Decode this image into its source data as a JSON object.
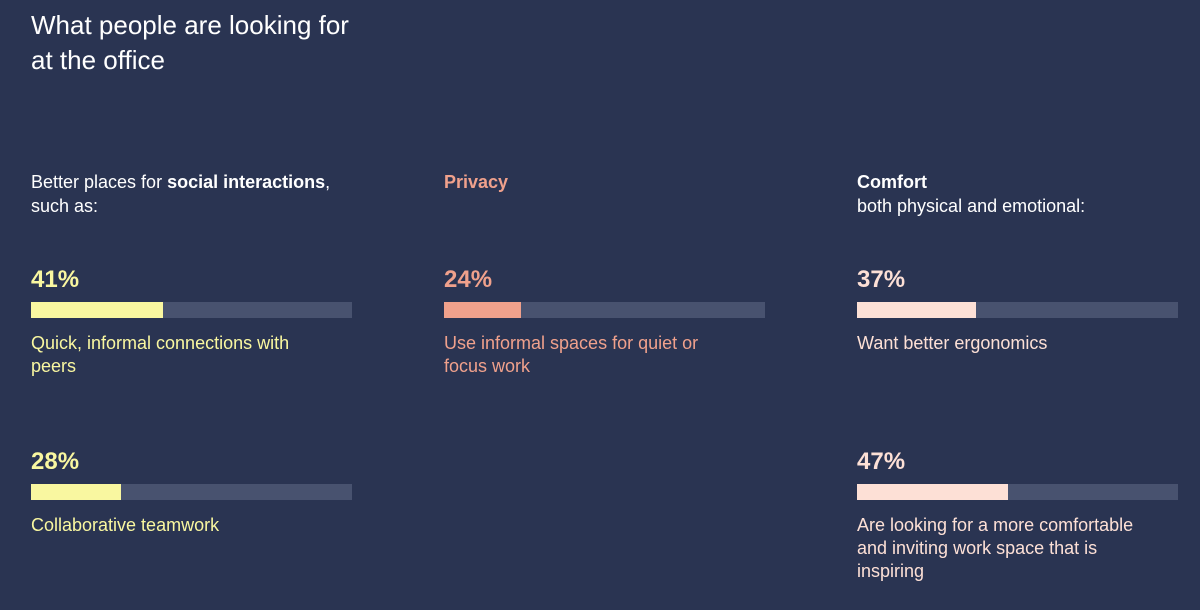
{
  "title_line1": "What people are looking for",
  "title_line2": "at the office",
  "colors": {
    "background": "#2a3452",
    "track": "#48526f",
    "social": "#f9f7a0",
    "privacy": "#f0a18c",
    "comfort": "#fde0d6"
  },
  "chart_data": {
    "type": "bar",
    "title": "What people are looking for at the office",
    "groups": [
      {
        "heading_pre": "Better places for ",
        "heading_bold": "social interactions",
        "heading_post": ", such as:",
        "color": "#f9f7a0",
        "items": [
          {
            "value": 41,
            "value_label": "41%",
            "label": "Quick, informal connections with peers"
          },
          {
            "value": 28,
            "value_label": "28%",
            "label": "Collaborative teamwork"
          }
        ]
      },
      {
        "heading_pre": "",
        "heading_bold": "Privacy",
        "heading_post": "",
        "color": "#f0a18c",
        "items": [
          {
            "value": 24,
            "value_label": "24%",
            "label": "Use informal spaces for quiet or focus work"
          }
        ]
      },
      {
        "heading_pre": "",
        "heading_bold": "Comfort",
        "heading_post": "both physical and emotional:",
        "color": "#fde0d6",
        "items": [
          {
            "value": 37,
            "value_label": "37%",
            "label": "Want better ergonomics"
          },
          {
            "value": 47,
            "value_label": "47%",
            "label": "Are looking for a more comfortable and inviting work space that is inspiring"
          }
        ]
      }
    ],
    "ylim": [
      0,
      100
    ]
  }
}
